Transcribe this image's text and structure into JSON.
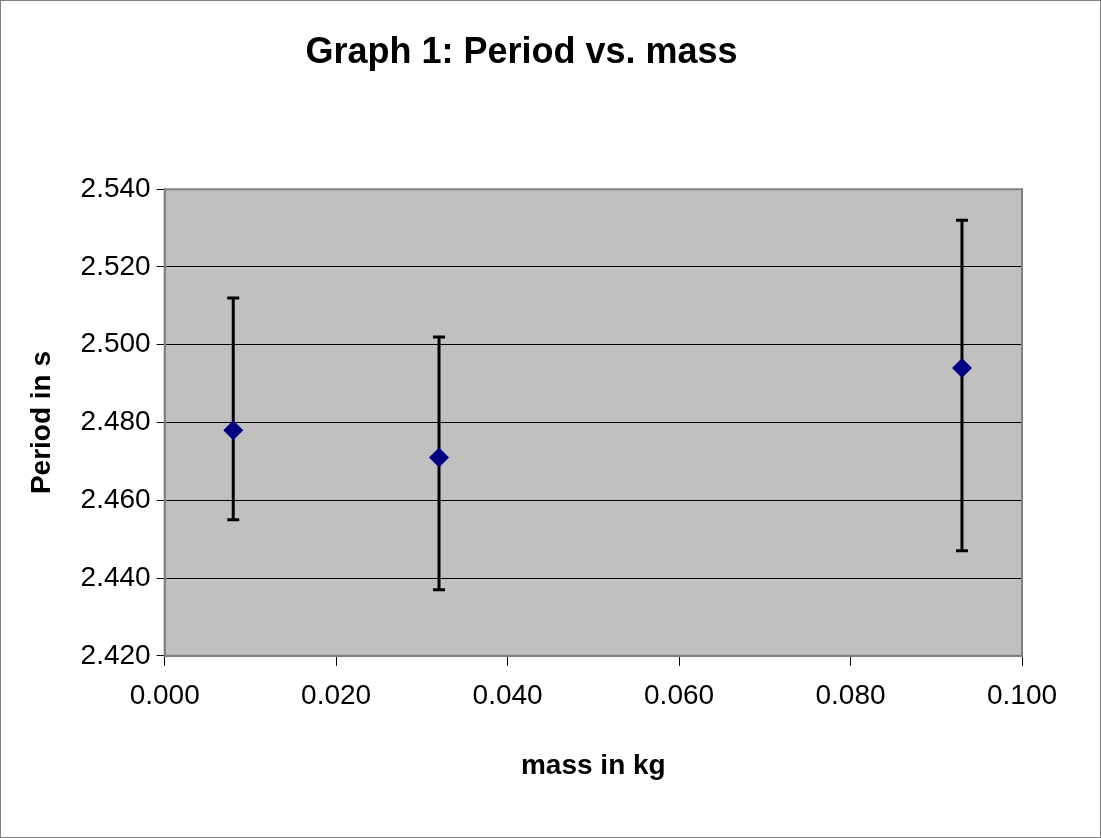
{
  "chart_data": {
    "type": "scatter",
    "title": "Graph 1: Period vs. mass",
    "xlabel": "mass in kg",
    "ylabel": "Period in s",
    "x": [
      0.008,
      0.032,
      0.093
    ],
    "series": [
      {
        "color": "#000080",
        "values": [
          2.478,
          2.471,
          2.494
        ],
        "errors": [
          [
            2.455,
            2.512
          ],
          [
            2.437,
            2.502
          ],
          [
            2.447,
            2.532
          ]
        ]
      }
    ],
    "xlim": [
      0,
      0.1
    ],
    "xticks": [
      {
        "value": 0,
        "label": "0.000"
      },
      {
        "value": 0.02,
        "label": "0.020"
      },
      {
        "value": 0.04,
        "label": "0.040"
      },
      {
        "value": 0.06,
        "label": "0.060"
      },
      {
        "value": 0.08,
        "label": "0.080"
      },
      {
        "value": 0.1,
        "label": "0.100"
      }
    ],
    "ylim": [
      2.42,
      2.54
    ],
    "yticks": [
      {
        "value": 2.42,
        "label": "2.420"
      },
      {
        "value": 2.44,
        "label": "2.440"
      },
      {
        "value": 2.46,
        "label": "2.460"
      },
      {
        "value": 2.48,
        "label": "2.480"
      },
      {
        "value": 2.5,
        "label": "2.500"
      },
      {
        "value": 2.52,
        "label": "2.520"
      },
      {
        "value": 2.54,
        "label": "2.540"
      }
    ],
    "grid": "y",
    "legend": false,
    "marker": "diamond"
  }
}
